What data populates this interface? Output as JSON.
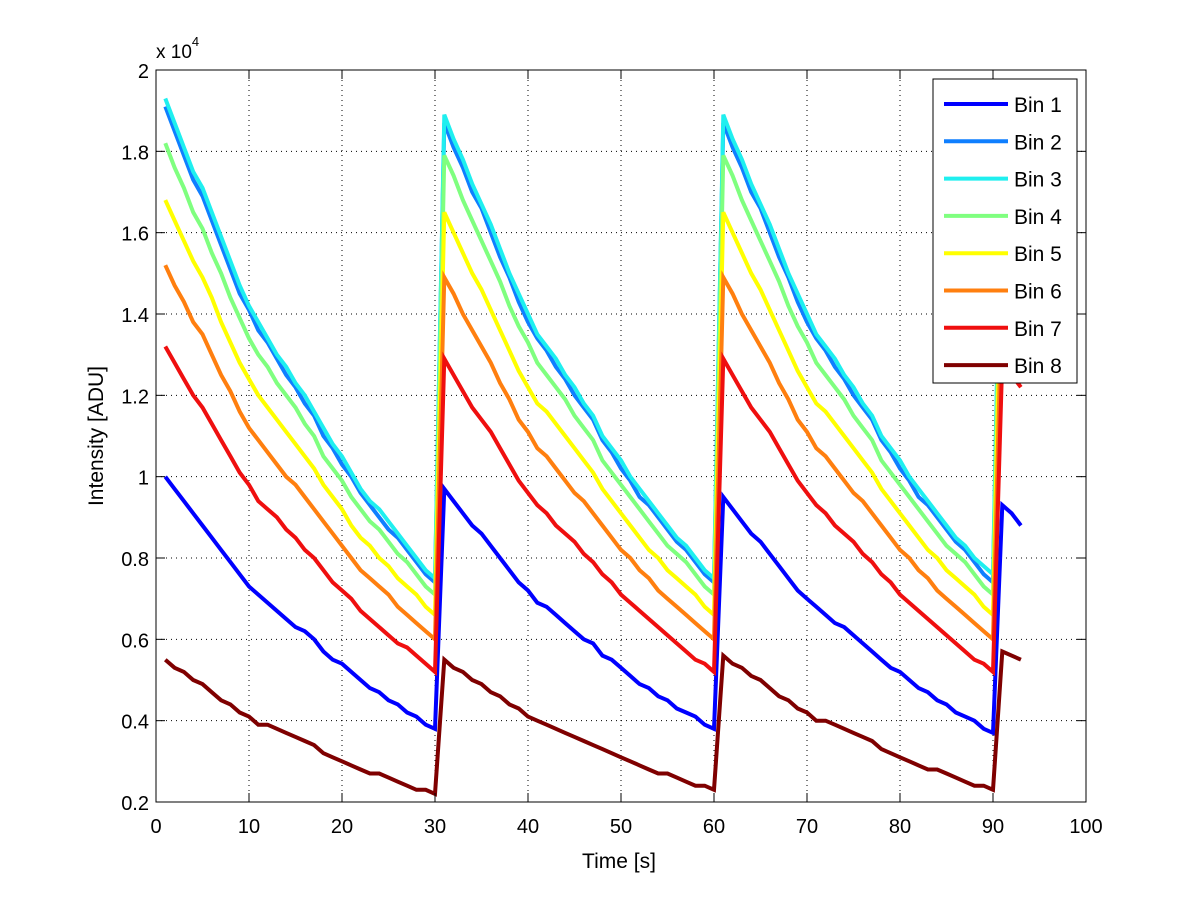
{
  "chart_data": {
    "type": "line",
    "title": "",
    "xlabel": "Time [s]",
    "ylabel": "Intensity [ADU]",
    "y_multiplier_label": "x 10",
    "y_multiplier_exponent": "4",
    "xlim": [
      0,
      100
    ],
    "ylim": [
      0.2,
      2.0
    ],
    "y_units_scale": 10000,
    "grid": true,
    "legend_position": "top-right",
    "x_ticks": [
      "0",
      "10",
      "20",
      "30",
      "40",
      "50",
      "60",
      "70",
      "80",
      "90",
      "100"
    ],
    "y_ticks": [
      "0.2",
      "0.4",
      "0.6",
      "0.8",
      "1",
      "1.2",
      "1.4",
      "1.6",
      "1.8",
      "2"
    ],
    "x_tick_values": [
      0,
      10,
      20,
      30,
      40,
      50,
      60,
      70,
      80,
      90,
      100
    ],
    "y_tick_values": [
      0.2,
      0.4,
      0.6,
      0.8,
      1.0,
      1.2,
      1.4,
      1.6,
      1.8,
      2.0
    ],
    "x": [
      1,
      2,
      3,
      4,
      5,
      6,
      7,
      8,
      9,
      10,
      11,
      12,
      13,
      14,
      15,
      16,
      17,
      18,
      19,
      20,
      21,
      22,
      23,
      24,
      25,
      26,
      27,
      28,
      29,
      30,
      31,
      32,
      33,
      34,
      35,
      36,
      37,
      38,
      39,
      40,
      41,
      42,
      43,
      44,
      45,
      46,
      47,
      48,
      49,
      50,
      51,
      52,
      53,
      54,
      55,
      56,
      57,
      58,
      59,
      60,
      61,
      62,
      63,
      64,
      65,
      66,
      67,
      68,
      69,
      70,
      71,
      72,
      73,
      74,
      75,
      76,
      77,
      78,
      79,
      80,
      81,
      82,
      83,
      84,
      85,
      86,
      87,
      88,
      89,
      90,
      91,
      92,
      93
    ],
    "series": [
      {
        "name": "Bin 1",
        "color": "#0000ff",
        "values": [
          1.0,
          0.97,
          0.94,
          0.91,
          0.88,
          0.85,
          0.82,
          0.79,
          0.76,
          0.73,
          0.71,
          0.69,
          0.67,
          0.65,
          0.63,
          0.62,
          0.6,
          0.57,
          0.55,
          0.54,
          0.52,
          0.5,
          0.48,
          0.47,
          0.45,
          0.44,
          0.42,
          0.41,
          0.39,
          0.38,
          0.97,
          0.94,
          0.91,
          0.88,
          0.86,
          0.83,
          0.8,
          0.77,
          0.74,
          0.72,
          0.69,
          0.68,
          0.66,
          0.64,
          0.62,
          0.6,
          0.59,
          0.56,
          0.55,
          0.53,
          0.51,
          0.49,
          0.48,
          0.46,
          0.45,
          0.43,
          0.42,
          0.41,
          0.39,
          0.38,
          0.95,
          0.92,
          0.89,
          0.86,
          0.84,
          0.81,
          0.78,
          0.75,
          0.72,
          0.7,
          0.68,
          0.66,
          0.64,
          0.63,
          0.61,
          0.59,
          0.57,
          0.55,
          0.53,
          0.52,
          0.5,
          0.48,
          0.47,
          0.45,
          0.44,
          0.42,
          0.41,
          0.4,
          0.38,
          0.37,
          0.93,
          0.91,
          0.88
        ]
      },
      {
        "name": "Bin 2",
        "color": "#0f7fff",
        "values": [
          1.91,
          1.85,
          1.79,
          1.73,
          1.69,
          1.63,
          1.57,
          1.51,
          1.45,
          1.41,
          1.36,
          1.33,
          1.29,
          1.25,
          1.22,
          1.18,
          1.15,
          1.1,
          1.07,
          1.03,
          1.0,
          0.96,
          0.93,
          0.9,
          0.87,
          0.85,
          0.82,
          0.79,
          0.76,
          0.74,
          1.87,
          1.81,
          1.76,
          1.7,
          1.66,
          1.6,
          1.54,
          1.49,
          1.43,
          1.38,
          1.34,
          1.31,
          1.27,
          1.24,
          1.2,
          1.17,
          1.14,
          1.09,
          1.06,
          1.02,
          0.99,
          0.95,
          0.93,
          0.9,
          0.87,
          0.84,
          0.82,
          0.79,
          0.76,
          0.74,
          1.87,
          1.81,
          1.76,
          1.7,
          1.66,
          1.6,
          1.54,
          1.49,
          1.43,
          1.38,
          1.34,
          1.31,
          1.27,
          1.24,
          1.2,
          1.17,
          1.14,
          1.09,
          1.06,
          1.02,
          0.99,
          0.95,
          0.93,
          0.9,
          0.87,
          0.84,
          0.82,
          0.79,
          0.76,
          0.74,
          1.87,
          1.81,
          1.76
        ]
      },
      {
        "name": "Bin 3",
        "color": "#1fefef",
        "values": [
          1.93,
          1.87,
          1.81,
          1.75,
          1.71,
          1.65,
          1.59,
          1.53,
          1.47,
          1.42,
          1.38,
          1.34,
          1.3,
          1.27,
          1.23,
          1.2,
          1.16,
          1.12,
          1.08,
          1.05,
          1.01,
          0.97,
          0.94,
          0.92,
          0.89,
          0.86,
          0.83,
          0.8,
          0.77,
          0.75,
          1.89,
          1.83,
          1.78,
          1.72,
          1.67,
          1.62,
          1.56,
          1.5,
          1.45,
          1.4,
          1.35,
          1.32,
          1.29,
          1.25,
          1.22,
          1.18,
          1.15,
          1.1,
          1.07,
          1.04,
          1.0,
          0.97,
          0.94,
          0.91,
          0.88,
          0.85,
          0.83,
          0.8,
          0.77,
          0.75,
          1.89,
          1.83,
          1.78,
          1.72,
          1.67,
          1.62,
          1.56,
          1.5,
          1.45,
          1.4,
          1.35,
          1.32,
          1.29,
          1.25,
          1.22,
          1.18,
          1.15,
          1.1,
          1.07,
          1.04,
          1.0,
          0.97,
          0.94,
          0.91,
          0.88,
          0.85,
          0.83,
          0.8,
          0.78,
          0.76,
          1.89,
          1.83,
          1.78
        ]
      },
      {
        "name": "Bin 4",
        "color": "#7fff7f",
        "values": [
          1.82,
          1.76,
          1.71,
          1.65,
          1.61,
          1.55,
          1.5,
          1.44,
          1.39,
          1.34,
          1.3,
          1.27,
          1.23,
          1.2,
          1.17,
          1.13,
          1.1,
          1.05,
          1.02,
          0.99,
          0.95,
          0.92,
          0.89,
          0.87,
          0.84,
          0.81,
          0.79,
          0.76,
          0.73,
          0.71,
          1.79,
          1.74,
          1.68,
          1.63,
          1.58,
          1.53,
          1.48,
          1.42,
          1.37,
          1.33,
          1.28,
          1.25,
          1.22,
          1.19,
          1.15,
          1.12,
          1.09,
          1.04,
          1.01,
          0.98,
          0.95,
          0.92,
          0.89,
          0.86,
          0.83,
          0.81,
          0.79,
          0.76,
          0.73,
          0.71,
          1.79,
          1.74,
          1.68,
          1.63,
          1.58,
          1.53,
          1.48,
          1.42,
          1.37,
          1.33,
          1.28,
          1.25,
          1.22,
          1.19,
          1.15,
          1.12,
          1.09,
          1.04,
          1.01,
          0.98,
          0.95,
          0.92,
          0.89,
          0.86,
          0.83,
          0.81,
          0.79,
          0.76,
          0.73,
          0.71,
          1.79,
          1.74,
          1.68
        ]
      },
      {
        "name": "Bin 5",
        "color": "#ffff00",
        "values": [
          1.68,
          1.63,
          1.58,
          1.53,
          1.49,
          1.44,
          1.38,
          1.33,
          1.28,
          1.24,
          1.2,
          1.17,
          1.14,
          1.11,
          1.08,
          1.05,
          1.02,
          0.98,
          0.95,
          0.92,
          0.88,
          0.85,
          0.83,
          0.8,
          0.78,
          0.75,
          0.73,
          0.71,
          0.68,
          0.66,
          1.65,
          1.6,
          1.55,
          1.5,
          1.46,
          1.41,
          1.36,
          1.31,
          1.26,
          1.22,
          1.18,
          1.16,
          1.13,
          1.1,
          1.07,
          1.04,
          1.01,
          0.97,
          0.94,
          0.91,
          0.88,
          0.85,
          0.82,
          0.8,
          0.77,
          0.75,
          0.73,
          0.71,
          0.68,
          0.66,
          1.65,
          1.6,
          1.55,
          1.5,
          1.46,
          1.41,
          1.36,
          1.31,
          1.26,
          1.22,
          1.18,
          1.16,
          1.13,
          1.1,
          1.07,
          1.04,
          1.01,
          0.97,
          0.94,
          0.91,
          0.88,
          0.85,
          0.82,
          0.8,
          0.77,
          0.75,
          0.73,
          0.71,
          0.68,
          0.66,
          1.65,
          1.6,
          1.55
        ]
      },
      {
        "name": "Bin 6",
        "color": "#ff7f0f",
        "values": [
          1.52,
          1.47,
          1.43,
          1.38,
          1.35,
          1.3,
          1.25,
          1.21,
          1.16,
          1.12,
          1.09,
          1.06,
          1.03,
          1.0,
          0.98,
          0.95,
          0.92,
          0.89,
          0.86,
          0.83,
          0.8,
          0.77,
          0.75,
          0.73,
          0.71,
          0.68,
          0.66,
          0.64,
          0.62,
          0.6,
          1.49,
          1.45,
          1.4,
          1.36,
          1.32,
          1.28,
          1.23,
          1.19,
          1.14,
          1.11,
          1.07,
          1.05,
          1.02,
          0.99,
          0.96,
          0.94,
          0.91,
          0.88,
          0.85,
          0.82,
          0.8,
          0.77,
          0.75,
          0.72,
          0.7,
          0.68,
          0.66,
          0.64,
          0.62,
          0.6,
          1.49,
          1.45,
          1.4,
          1.36,
          1.32,
          1.28,
          1.23,
          1.19,
          1.14,
          1.11,
          1.07,
          1.05,
          1.02,
          0.99,
          0.96,
          0.94,
          0.91,
          0.88,
          0.85,
          0.82,
          0.8,
          0.77,
          0.75,
          0.72,
          0.7,
          0.68,
          0.66,
          0.64,
          0.62,
          0.6,
          1.49,
          1.45,
          1.4
        ]
      },
      {
        "name": "Bin 7",
        "color": "#ef0f0f",
        "values": [
          1.32,
          1.28,
          1.24,
          1.2,
          1.17,
          1.13,
          1.09,
          1.05,
          1.01,
          0.98,
          0.94,
          0.92,
          0.9,
          0.87,
          0.85,
          0.82,
          0.8,
          0.77,
          0.74,
          0.72,
          0.7,
          0.67,
          0.65,
          0.63,
          0.61,
          0.59,
          0.58,
          0.56,
          0.54,
          0.52,
          1.29,
          1.25,
          1.21,
          1.17,
          1.14,
          1.11,
          1.07,
          1.03,
          0.99,
          0.96,
          0.93,
          0.91,
          0.88,
          0.86,
          0.84,
          0.81,
          0.79,
          0.76,
          0.74,
          0.71,
          0.69,
          0.67,
          0.65,
          0.63,
          0.61,
          0.59,
          0.57,
          0.55,
          0.54,
          0.52,
          1.29,
          1.25,
          1.21,
          1.17,
          1.14,
          1.11,
          1.07,
          1.03,
          0.99,
          0.96,
          0.93,
          0.91,
          0.88,
          0.86,
          0.84,
          0.81,
          0.79,
          0.76,
          0.74,
          0.71,
          0.69,
          0.67,
          0.65,
          0.63,
          0.61,
          0.59,
          0.57,
          0.55,
          0.54,
          0.52,
          1.29,
          1.25,
          1.22
        ]
      },
      {
        "name": "Bin 8",
        "color": "#7f0000",
        "values": [
          0.55,
          0.53,
          0.52,
          0.5,
          0.49,
          0.47,
          0.45,
          0.44,
          0.42,
          0.41,
          0.39,
          0.39,
          0.38,
          0.37,
          0.36,
          0.35,
          0.34,
          0.32,
          0.31,
          0.3,
          0.29,
          0.28,
          0.27,
          0.27,
          0.26,
          0.25,
          0.24,
          0.23,
          0.23,
          0.22,
          0.55,
          0.53,
          0.52,
          0.5,
          0.49,
          0.47,
          0.46,
          0.44,
          0.43,
          0.41,
          0.4,
          0.39,
          0.38,
          0.37,
          0.36,
          0.35,
          0.34,
          0.33,
          0.32,
          0.31,
          0.3,
          0.29,
          0.28,
          0.27,
          0.27,
          0.26,
          0.25,
          0.24,
          0.24,
          0.23,
          0.56,
          0.54,
          0.53,
          0.51,
          0.5,
          0.48,
          0.46,
          0.45,
          0.43,
          0.42,
          0.4,
          0.4,
          0.39,
          0.38,
          0.37,
          0.36,
          0.35,
          0.33,
          0.32,
          0.31,
          0.3,
          0.29,
          0.28,
          0.28,
          0.27,
          0.26,
          0.25,
          0.24,
          0.24,
          0.23,
          0.57,
          0.56,
          0.55
        ]
      }
    ]
  }
}
